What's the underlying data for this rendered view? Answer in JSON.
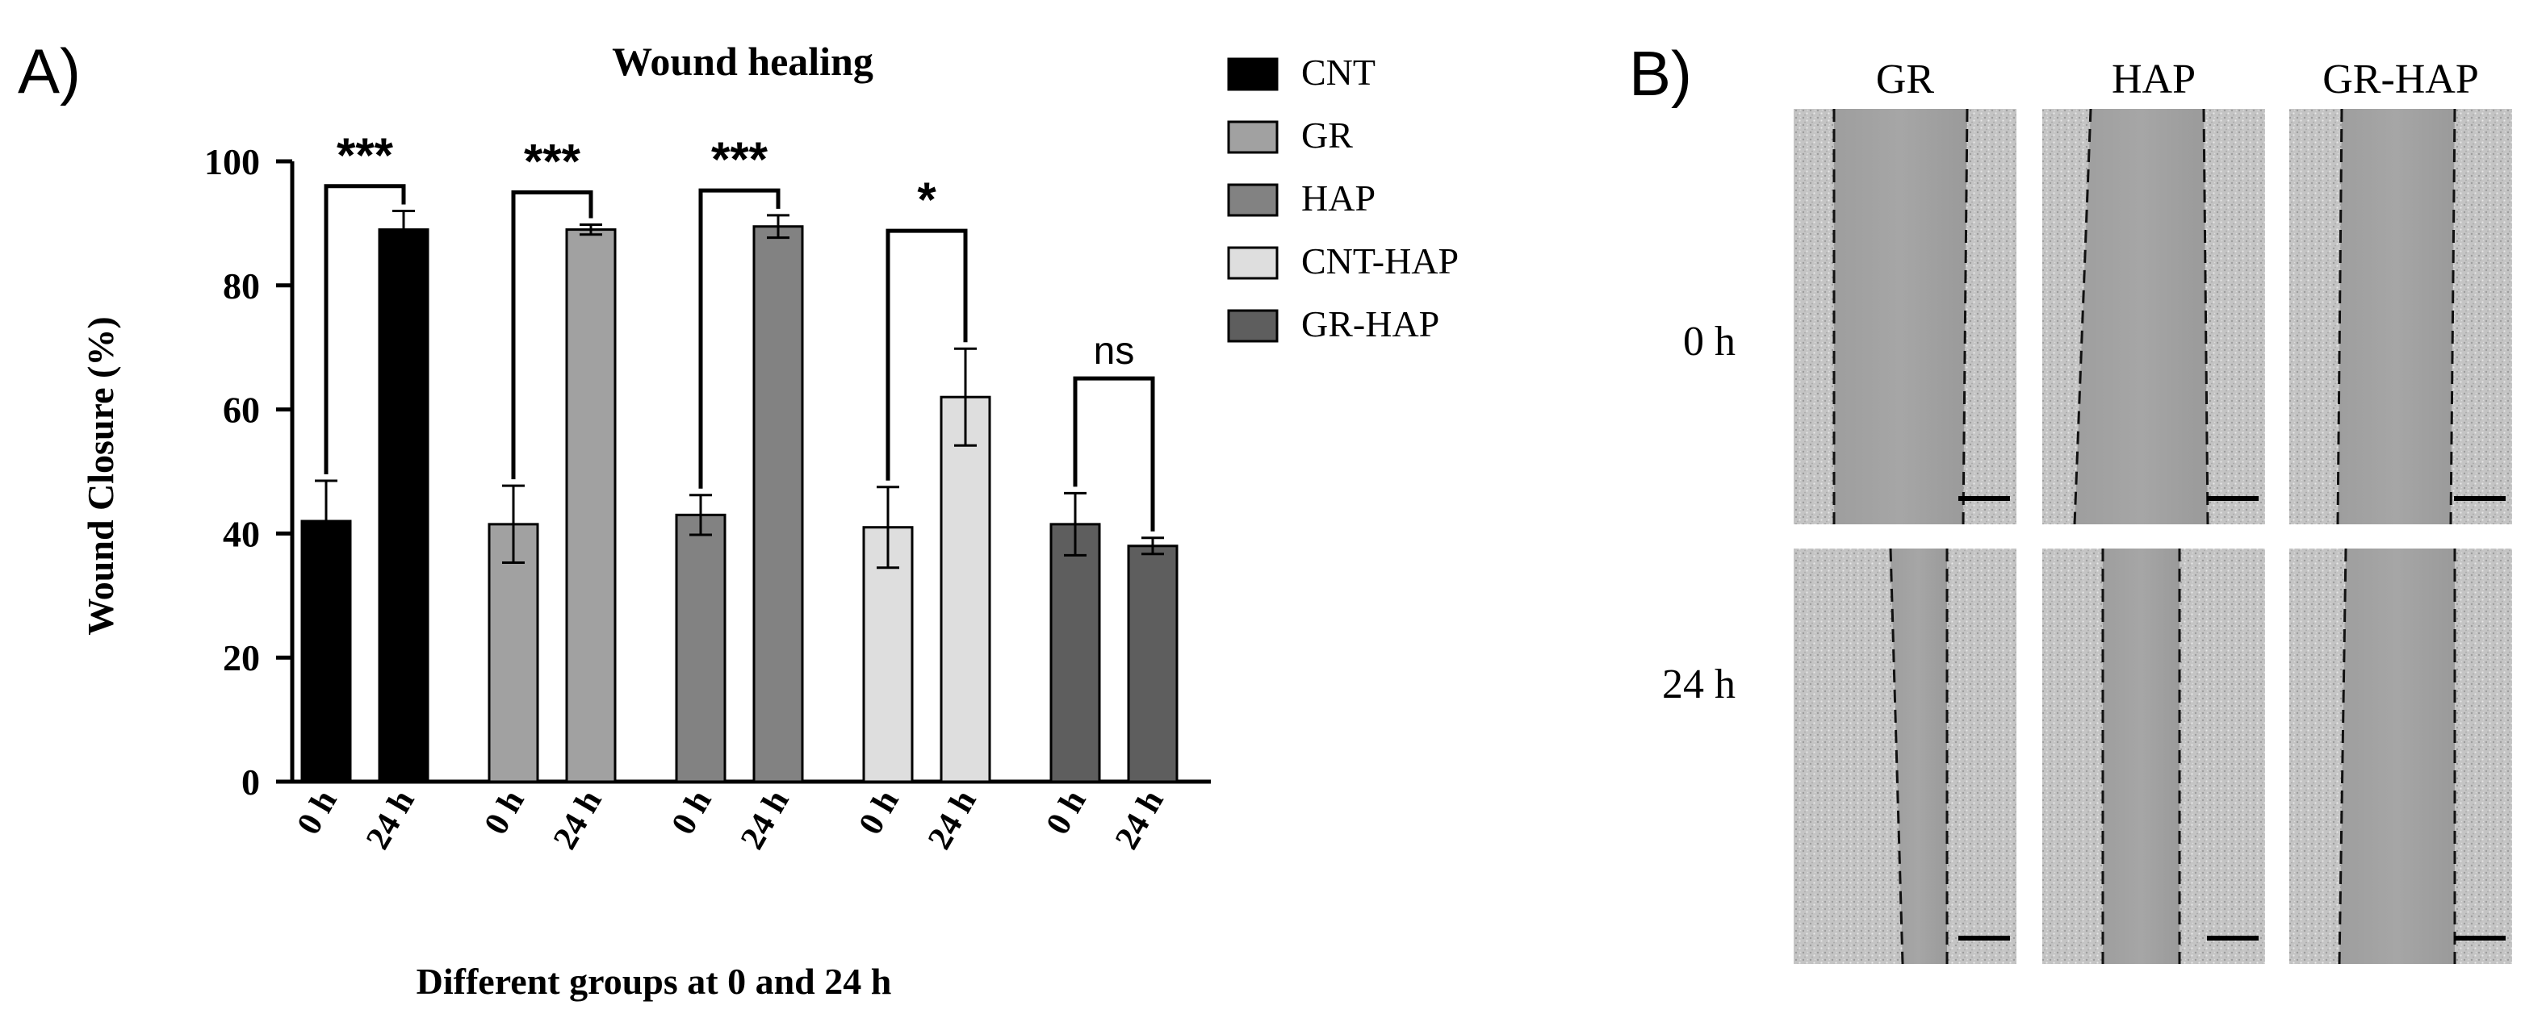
{
  "panel_a": {
    "label": "A)",
    "chart_data": {
      "type": "bar",
      "title": "Wound healing",
      "xlabel": "Different groups at 0 and 24 h",
      "ylabel": "Wound Closure (%)",
      "ylim": [
        0,
        100
      ],
      "yticks": [
        0,
        20,
        40,
        60,
        80,
        100
      ],
      "timepoints": [
        "0 h",
        "24 h"
      ],
      "groups": [
        {
          "name": "CNT",
          "color": "#000000",
          "values": [
            42,
            89
          ],
          "errors": [
            6.5,
            3.0
          ],
          "significance": "***"
        },
        {
          "name": "GR",
          "color": "#a1a1a1",
          "values": [
            41.5,
            89
          ],
          "errors": [
            6.2,
            0.8
          ],
          "significance": "***"
        },
        {
          "name": "HAP",
          "color": "#828282",
          "values": [
            43,
            89.5
          ],
          "errors": [
            3.2,
            1.8
          ],
          "significance": "***"
        },
        {
          "name": "CNT-HAP",
          "color": "#dedede",
          "values": [
            41,
            62
          ],
          "errors": [
            6.5,
            7.8
          ],
          "significance": "*"
        },
        {
          "name": "GR-HAP",
          "color": "#5e5e5e",
          "values": [
            41.5,
            38
          ],
          "errors": [
            5.0,
            1.3
          ],
          "significance": "ns"
        }
      ],
      "legend": [
        "CNT",
        "GR",
        "HAP",
        "CNT-HAP",
        "GR-HAP"
      ],
      "legend_position": "right"
    }
  },
  "panel_b": {
    "label": "B)",
    "columns": [
      "GR",
      "HAP",
      "GR-HAP"
    ],
    "rows": [
      "0 h",
      "24 h"
    ]
  }
}
